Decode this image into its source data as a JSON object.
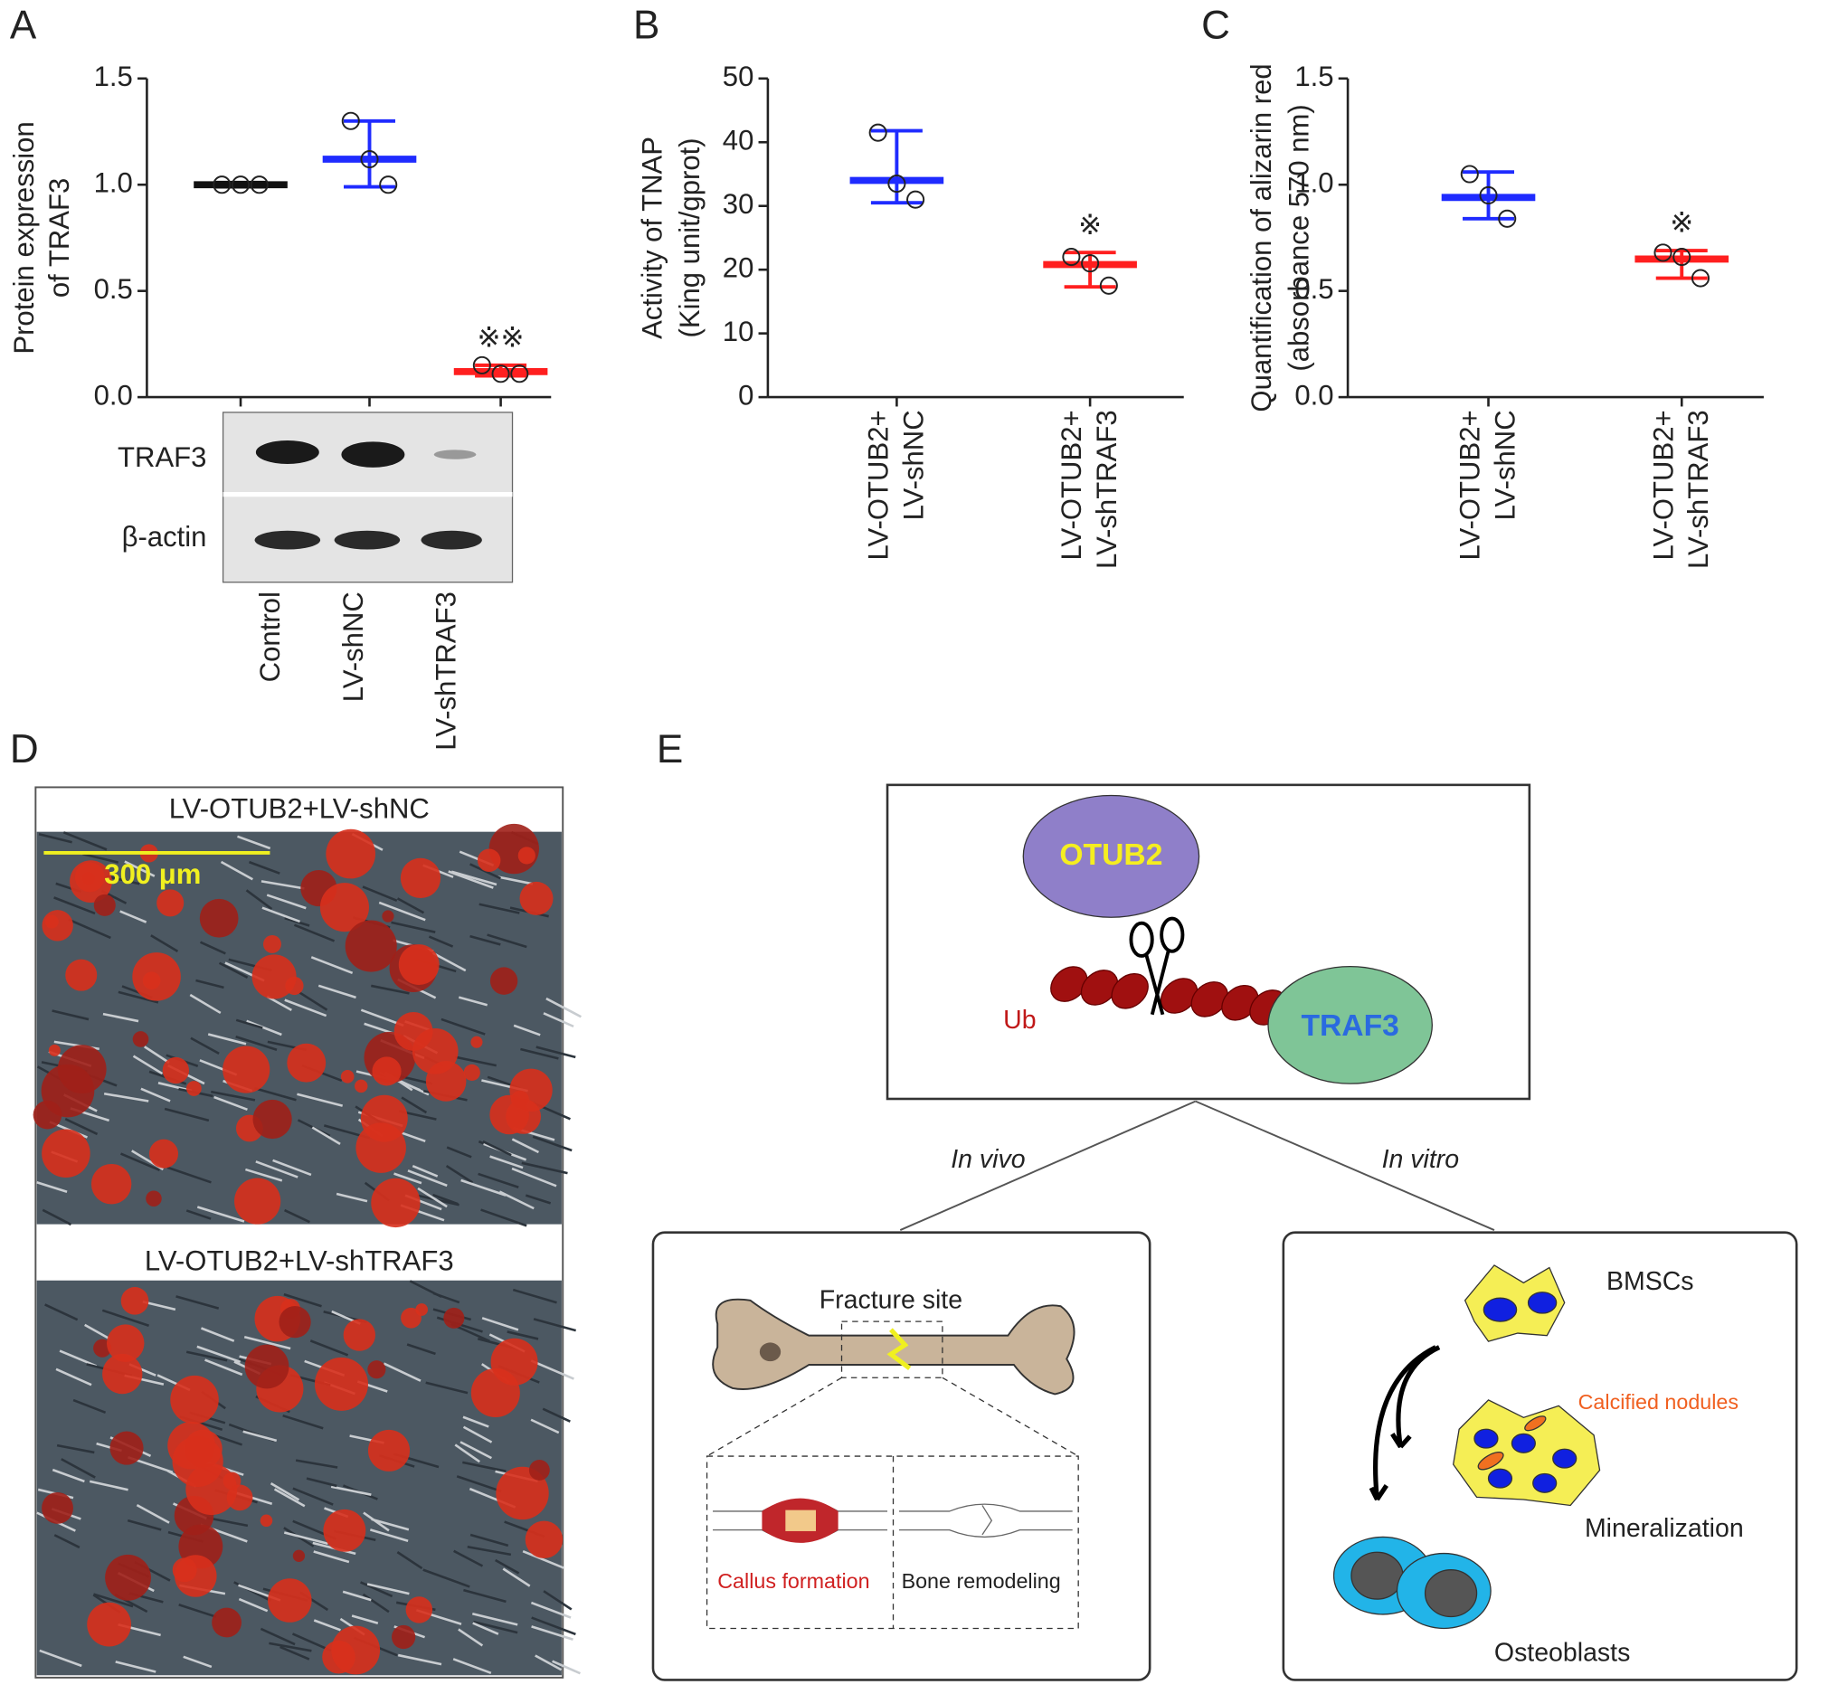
{
  "panels": [
    "A",
    "B",
    "C",
    "D",
    "E"
  ],
  "chart_data": [
    {
      "type": "dotplot",
      "ylabel": [
        "Protein expression",
        "of TRAF3"
      ],
      "categories": [
        "Control",
        "LV-shNC",
        "LV-shTRAF3"
      ],
      "colors": [
        "#111111",
        "#1f2bff",
        "#ff1f1f"
      ],
      "points": [
        [
          1.0,
          1.0,
          1.0
        ],
        [
          1.3,
          1.12,
          1.0
        ],
        [
          0.15,
          0.11,
          0.11
        ]
      ],
      "means": [
        1.0,
        1.12,
        0.12
      ],
      "lows": [
        0.99,
        0.99,
        0.1
      ],
      "highs": [
        1.01,
        1.3,
        0.15
      ],
      "marks": [
        null,
        null,
        "※※"
      ],
      "ylim": [
        0,
        1.5
      ],
      "yticks": [
        {
          "value": 0,
          "label": "0.0"
        },
        0.5,
        {
          "value": 1,
          "label": "1.0"
        },
        1.5
      ]
    },
    {
      "type": "dotplot",
      "ylabel": [
        "Activity of TNAP",
        "(King unit/gprot)"
      ],
      "categories": [
        [
          "LV-OTUB2+",
          "LV-shNC"
        ],
        [
          "LV-OTUB2+",
          "LV-shTRAF3"
        ]
      ],
      "colors": [
        "#1f2bff",
        "#ff1f1f"
      ],
      "points": [
        [
          41.5,
          33.5,
          31
        ],
        [
          22,
          21,
          17.5
        ]
      ],
      "means": [
        34,
        20.8
      ],
      "lows": [
        30.5,
        17.3
      ],
      "highs": [
        41.8,
        22.7
      ],
      "marks": [
        null,
        "※"
      ],
      "ylim": [
        0,
        50
      ],
      "yticks": [
        0,
        10,
        20,
        30,
        40,
        50
      ]
    },
    {
      "type": "dotplot",
      "ylabel": [
        "Quantification of alizarin red",
        "(absorbance 570 nm)"
      ],
      "categories": [
        [
          "LV-OTUB2+",
          "LV-shNC"
        ],
        [
          "LV-OTUB2+",
          "LV-shTRAF3"
        ]
      ],
      "colors": [
        "#1f2bff",
        "#ff1f1f"
      ],
      "points": [
        [
          1.05,
          0.95,
          0.84
        ],
        [
          0.68,
          0.66,
          0.56
        ]
      ],
      "means": [
        0.94,
        0.65
      ],
      "lows": [
        0.84,
        0.56
      ],
      "highs": [
        1.06,
        0.69
      ],
      "marks": [
        null,
        "※"
      ],
      "ylim": [
        0,
        1.5
      ],
      "yticks": [
        {
          "value": 0,
          "label": "0.0"
        },
        0.5,
        {
          "value": 1,
          "label": "1.0"
        },
        1.5
      ]
    }
  ],
  "blot": {
    "rows": [
      "TRAF3",
      "β-actin"
    ]
  },
  "micrographs": {
    "labels": [
      "LV-OTUB2+LV-shNC",
      "LV-OTUB2+LV-shTRAF3"
    ],
    "scale_bar": "300 μm"
  },
  "diagram": {
    "enzyme": "OTUB2",
    "ubiquitin": "Ub",
    "target": "TRAF3",
    "in_vivo": "In vivo",
    "in_vitro": "In vitro",
    "fracture_site": "Fracture site",
    "callus": "Callus formation",
    "remodeling": "Bone remodeling",
    "bmscs": "BMSCs",
    "nodules": "Calcified nodules",
    "mineralization": "Mineralization",
    "osteoblasts": "Osteoblasts"
  }
}
